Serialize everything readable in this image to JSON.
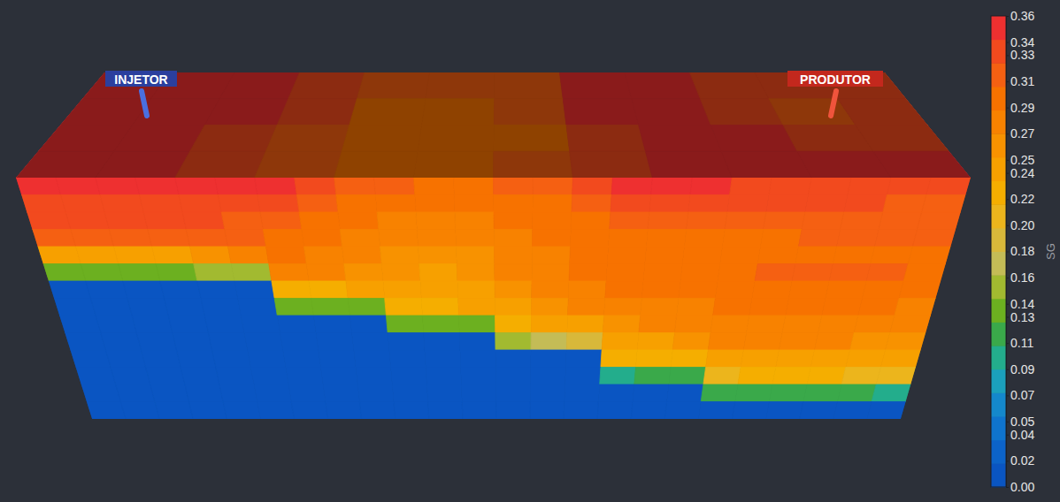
{
  "chart_data": {
    "type": "heatmap",
    "annotations": [
      "INJETOR",
      "PRODUTOR"
    ],
    "colorbar_label": "SG",
    "colorbar_range": [
      0,
      0.36
    ],
    "colorbar_ticks": [
      {
        "value": 0.36,
        "label": "0.36"
      },
      {
        "value": 0.34,
        "label": "0.34"
      },
      {
        "value": 0.33,
        "label": "0.33"
      },
      {
        "value": 0.31,
        "label": "0.31"
      },
      {
        "value": 0.29,
        "label": "0.29"
      },
      {
        "value": 0.27,
        "label": "0.27"
      },
      {
        "value": 0.25,
        "label": "0.25"
      },
      {
        "value": 0.24,
        "label": "0.24"
      },
      {
        "value": 0.22,
        "label": "0.22"
      },
      {
        "value": 0.2,
        "label": "0.20"
      },
      {
        "value": 0.18,
        "label": "0.18"
      },
      {
        "value": 0.16,
        "label": "0.16"
      },
      {
        "value": 0.14,
        "label": "0.14"
      },
      {
        "value": 0.13,
        "label": "0.13"
      },
      {
        "value": 0.11,
        "label": "0.11"
      },
      {
        "value": 0.09,
        "label": "0.09"
      },
      {
        "value": 0.07,
        "label": "0.07"
      },
      {
        "value": 0.05,
        "label": "0.05"
      },
      {
        "value": 0.04,
        "label": "0.04"
      },
      {
        "value": 0.02,
        "label": "0.02"
      },
      {
        "value": 0,
        "label": "0.00"
      }
    ],
    "top_cells": [
      [
        0.35,
        0.35,
        0.35,
        0.34,
        0.31,
        0.31,
        0.32,
        0.35,
        0.35,
        0.34,
        0.33,
        0.34
      ],
      [
        0.35,
        0.35,
        0.35,
        0.33,
        0.3,
        0.3,
        0.31,
        0.35,
        0.35,
        0.34,
        0.32,
        0.34
      ],
      [
        0.35,
        0.35,
        0.34,
        0.32,
        0.3,
        0.3,
        0.3,
        0.34,
        0.35,
        0.35,
        0.34,
        0.34
      ],
      [
        0.35,
        0.35,
        0.34,
        0.31,
        0.29,
        0.3,
        0.31,
        0.34,
        0.35,
        0.35,
        0.35,
        0.35
      ]
    ],
    "front_cells": [
      [
        0.35,
        0.35,
        0.35,
        0.35,
        0.35,
        0.35,
        0.35,
        0.34,
        0.32,
        0.31,
        0.3,
        0.3,
        0.31,
        0.32,
        0.34,
        0.35,
        0.35,
        0.35,
        0.34,
        0.34,
        0.34,
        0.34,
        0.34,
        0.34
      ],
      [
        0.34,
        0.34,
        0.34,
        0.34,
        0.34,
        0.34,
        0.33,
        0.31,
        0.3,
        0.29,
        0.29,
        0.29,
        0.3,
        0.3,
        0.32,
        0.33,
        0.33,
        0.33,
        0.33,
        0.33,
        0.33,
        0.33,
        0.32,
        0.32
      ],
      [
        0.33,
        0.33,
        0.33,
        0.33,
        0.33,
        0.32,
        0.31,
        0.3,
        0.29,
        0.28,
        0.28,
        0.28,
        0.29,
        0.29,
        0.3,
        0.31,
        0.31,
        0.31,
        0.31,
        0.31,
        0.31,
        0.31,
        0.31,
        0.31
      ],
      [
        0.32,
        0.32,
        0.32,
        0.31,
        0.31,
        0.31,
        0.3,
        0.29,
        0.28,
        0.27,
        0.27,
        0.27,
        0.28,
        0.29,
        0.29,
        0.3,
        0.3,
        0.3,
        0.3,
        0.3,
        0.31,
        0.31,
        0.31,
        0.31
      ],
      [
        0.24,
        0.24,
        0.25,
        0.25,
        0.26,
        0.27,
        0.29,
        0.28,
        0.27,
        0.26,
        0.26,
        0.26,
        0.27,
        0.28,
        0.29,
        0.3,
        0.3,
        0.3,
        0.3,
        0.3,
        0.3,
        0.3,
        0.3,
        0.3
      ],
      [
        0.14,
        0.14,
        0.14,
        0.14,
        0.15,
        0.16,
        0.27,
        0.27,
        0.26,
        0.26,
        0.25,
        0.26,
        0.27,
        0.28,
        0.29,
        0.3,
        0.3,
        0.3,
        0.3,
        0.31,
        0.31,
        0.31,
        0.31,
        0.3
      ],
      [
        0.01,
        0.01,
        0.01,
        0.01,
        0.01,
        0.01,
        0.23,
        0.23,
        0.24,
        0.25,
        0.25,
        0.25,
        0.26,
        0.27,
        0.28,
        0.29,
        0.29,
        0.29,
        0.3,
        0.3,
        0.3,
        0.3,
        0.3,
        0.29
      ],
      [
        0.01,
        0.01,
        0.01,
        0.01,
        0.01,
        0.01,
        0.13,
        0.13,
        0.14,
        0.22,
        0.23,
        0.24,
        0.25,
        0.26,
        0.27,
        0.28,
        0.28,
        0.28,
        0.29,
        0.29,
        0.3,
        0.3,
        0.29,
        0.28
      ],
      [
        0.01,
        0.01,
        0.01,
        0.01,
        0.01,
        0.01,
        0.01,
        0.01,
        0.01,
        0.13,
        0.14,
        0.14,
        0.23,
        0.24,
        0.25,
        0.26,
        0.27,
        0.27,
        0.28,
        0.28,
        0.28,
        0.28,
        0.28,
        0.27
      ],
      [
        0.01,
        0.01,
        0.01,
        0.01,
        0.01,
        0.01,
        0.01,
        0.01,
        0.01,
        0.01,
        0.01,
        0.01,
        0.16,
        0.17,
        0.18,
        0.24,
        0.25,
        0.26,
        0.27,
        0.27,
        0.27,
        0.27,
        0.26,
        0.26
      ],
      [
        0.01,
        0.01,
        0.01,
        0.01,
        0.01,
        0.01,
        0.01,
        0.01,
        0.01,
        0.01,
        0.01,
        0.01,
        0.01,
        0.01,
        0.01,
        0.22,
        0.23,
        0.23,
        0.25,
        0.25,
        0.25,
        0.25,
        0.25,
        0.25
      ],
      [
        0.01,
        0.01,
        0.01,
        0.01,
        0.01,
        0.01,
        0.01,
        0.01,
        0.01,
        0.01,
        0.01,
        0.01,
        0.01,
        0.01,
        0.01,
        0.1,
        0.11,
        0.11,
        0.21,
        0.22,
        0.22,
        0.22,
        0.21,
        0.21
      ],
      [
        0.01,
        0.01,
        0.01,
        0.01,
        0.01,
        0.01,
        0.01,
        0.01,
        0.01,
        0.01,
        0.01,
        0.01,
        0.01,
        0.01,
        0.01,
        0.01,
        0.01,
        0.01,
        0.12,
        0.12,
        0.12,
        0.12,
        0.11,
        0.1
      ],
      [
        0.01,
        0.01,
        0.01,
        0.01,
        0.01,
        0.01,
        0.01,
        0.01,
        0.01,
        0.01,
        0.01,
        0.01,
        0.01,
        0.01,
        0.01,
        0.01,
        0.01,
        0.01,
        0.01,
        0.01,
        0.01,
        0.01,
        0.01,
        0.01
      ]
    ]
  }
}
